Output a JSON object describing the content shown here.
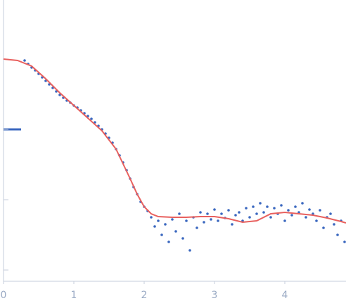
{
  "chart_data": {
    "type": "scatter",
    "xlim": [
      0,
      4.87
    ],
    "xticks": [
      0,
      1,
      2,
      3,
      4
    ],
    "ylim": [
      -3.16,
      0.84
    ],
    "yticks": [
      -3,
      -2,
      -1,
      0
    ],
    "series": [
      {
        "type": "scatter",
        "color": "#3a67bf",
        "x": [
          0.3,
          0.35,
          0.4,
          0.45,
          0.5,
          0.55,
          0.6,
          0.65,
          0.7,
          0.75,
          0.8,
          0.85,
          0.9,
          0.95,
          1.0,
          1.05,
          1.1,
          1.15,
          1.2,
          1.25,
          1.3,
          1.35,
          1.4,
          1.45,
          1.5,
          1.55,
          1.6,
          1.65,
          1.7,
          1.75,
          1.8,
          1.85,
          1.9,
          1.95,
          2.0,
          2.05,
          2.1,
          2.15,
          2.2,
          2.25,
          2.3,
          2.35,
          2.4,
          2.45,
          2.5,
          2.55,
          2.6,
          2.65,
          2.7,
          2.75,
          2.8,
          2.85,
          2.9,
          2.95,
          3.0,
          3.05,
          3.1,
          3.15,
          3.2,
          3.25,
          3.3,
          3.35,
          3.4,
          3.45,
          3.5,
          3.55,
          3.6,
          3.65,
          3.7,
          3.75,
          3.8,
          3.85,
          3.9,
          3.95,
          4.0,
          4.05,
          4.1,
          4.15,
          4.2,
          4.25,
          4.3,
          4.35,
          4.4,
          4.45,
          4.5,
          4.55,
          4.6,
          4.65,
          4.7,
          4.75,
          4.8,
          4.85
        ],
        "values": [
          -0.02,
          -0.07,
          -0.12,
          -0.16,
          -0.21,
          -0.26,
          -0.31,
          -0.36,
          -0.41,
          -0.46,
          -0.51,
          -0.55,
          -0.59,
          -0.62,
          -0.66,
          -0.69,
          -0.73,
          -0.77,
          -0.81,
          -0.85,
          -0.9,
          -0.95,
          -1.0,
          -1.06,
          -1.12,
          -1.19,
          -1.28,
          -1.37,
          -1.47,
          -1.58,
          -1.7,
          -1.82,
          -1.92,
          -2.03,
          -2.1,
          -2.16,
          -2.25,
          -2.38,
          -2.3,
          -2.5,
          -2.35,
          -2.6,
          -2.28,
          -2.45,
          -2.2,
          -2.55,
          -2.3,
          -2.72,
          -2.25,
          -2.4,
          -2.18,
          -2.32,
          -2.2,
          -2.28,
          -2.14,
          -2.3,
          -2.2,
          -2.26,
          -2.15,
          -2.35,
          -2.22,
          -2.18,
          -2.3,
          -2.12,
          -2.25,
          -2.1,
          -2.2,
          -2.05,
          -2.18,
          -2.1,
          -2.25,
          -2.12,
          -2.2,
          -2.08,
          -2.3,
          -2.15,
          -2.22,
          -2.1,
          -2.18,
          -2.05,
          -2.25,
          -2.14,
          -2.2,
          -2.3,
          -2.15,
          -2.4,
          -2.25,
          -2.2,
          -2.35,
          -2.5,
          -2.3,
          -2.6
        ]
      },
      {
        "type": "line",
        "color": "#e8605e",
        "x": [
          0,
          0.2,
          0.4,
          0.6,
          0.8,
          1.0,
          1.2,
          1.4,
          1.6,
          1.8,
          1.9,
          2.0,
          2.1,
          2.2,
          2.4,
          2.6,
          2.8,
          3.0,
          3.2,
          3.4,
          3.6,
          3.8,
          4.0,
          4.2,
          4.4,
          4.6,
          4.8,
          4.87
        ],
        "values": [
          0,
          -0.02,
          -0.1,
          -0.28,
          -0.48,
          -0.66,
          -0.84,
          -1.02,
          -1.28,
          -1.7,
          -1.92,
          -2.1,
          -2.2,
          -2.24,
          -2.25,
          -2.25,
          -2.24,
          -2.24,
          -2.27,
          -2.32,
          -2.3,
          -2.2,
          -2.18,
          -2.2,
          -2.22,
          -2.26,
          -2.31,
          -2.33
        ]
      }
    ]
  }
}
